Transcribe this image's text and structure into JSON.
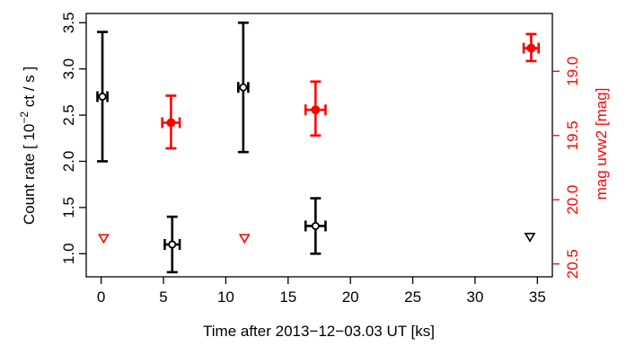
{
  "chart_data": {
    "type": "scatter",
    "title": "",
    "xlabel": "Time after 2013−12−03.03 UT [ks]",
    "ylabel_left_pre": "Count rate [ 10",
    "ylabel_left_exp": "−2",
    "ylabel_left_post": " ct / s ]",
    "ylabel_right": "mag uvw2 [mag]",
    "xlim": [
      -1.2,
      36.2
    ],
    "ylim_left": [
      0.75,
      3.6
    ],
    "ylim_right": [
      20.6,
      18.55
    ],
    "x_ticks": [
      0,
      5,
      10,
      15,
      20,
      25,
      30,
      35
    ],
    "y_left_ticks": [
      1.0,
      1.5,
      2.0,
      2.5,
      3.0,
      3.5
    ],
    "y_right_ticks": [
      19.0,
      19.5,
      20.0,
      20.5
    ],
    "colors": {
      "xray": "#000000",
      "uvot": "#ff0000"
    },
    "series": [
      {
        "axis": "left",
        "marker": "open-circle-errorbar",
        "color": "#000000",
        "points": [
          {
            "x": 0.1,
            "xerr": 0.4,
            "y": 2.7,
            "ylo": 2.0,
            "yhi": 3.4
          },
          {
            "x": 5.7,
            "xerr": 0.6,
            "y": 1.1,
            "ylo": 0.8,
            "yhi": 1.4
          },
          {
            "x": 11.4,
            "xerr": 0.4,
            "y": 2.8,
            "ylo": 2.1,
            "yhi": 3.5
          },
          {
            "x": 17.2,
            "xerr": 0.8,
            "y": 1.3,
            "ylo": 1.0,
            "yhi": 1.6
          }
        ]
      },
      {
        "axis": "left",
        "marker": "upper-limit-triangle",
        "color": "#000000",
        "points": [
          {
            "x": 34.4,
            "y": 1.18
          }
        ]
      },
      {
        "axis": "right",
        "marker": "filled-circle-errorbar",
        "color": "#ff0000",
        "points": [
          {
            "x": 5.6,
            "xerr": 0.7,
            "y": 19.4,
            "ylo": 19.6,
            "yhi": 19.19
          },
          {
            "x": 17.2,
            "xerr": 0.8,
            "y": 19.3,
            "ylo": 19.5,
            "yhi": 19.08
          },
          {
            "x": 34.5,
            "xerr": 0.6,
            "y": 18.82,
            "ylo": 18.92,
            "yhi": 18.71
          }
        ]
      },
      {
        "axis": "right",
        "marker": "upper-limit-triangle",
        "color": "#ff0000",
        "points": [
          {
            "x": 0.2,
            "y": 20.3
          },
          {
            "x": 11.5,
            "y": 20.3
          }
        ]
      }
    ]
  }
}
